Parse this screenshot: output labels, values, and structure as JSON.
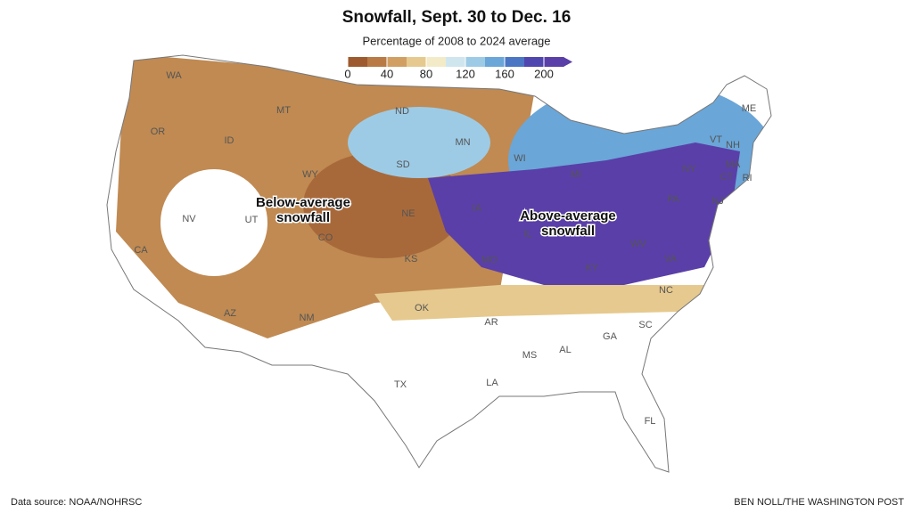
{
  "title": "Snowfall, Sept. 30 to Dec. 16",
  "subtitle": "Percentage of 2008 to 2024 average",
  "legend": {
    "range": [
      0,
      220
    ],
    "ticks": [
      0,
      40,
      80,
      120,
      160,
      200
    ],
    "colors": [
      "#9c5a2e",
      "#b97a45",
      "#d29f63",
      "#e6c98e",
      "#f3ebc8",
      "#cfe6ef",
      "#9dcbe6",
      "#6aa6d8",
      "#4a76c4",
      "#5046b0",
      "#5a3fa8"
    ]
  },
  "states": [
    "WA",
    "MT",
    "ND",
    "MN",
    "OR",
    "ID",
    "WY",
    "SD",
    "WI",
    "MI",
    "NY",
    "VT",
    "NH",
    "ME",
    "MA",
    "CT",
    "RI",
    "NJ",
    "PA",
    "NV",
    "UT",
    "NE",
    "IA",
    "IL",
    "CA",
    "CO",
    "KS",
    "MO",
    "WV",
    "KY",
    "VA",
    "NC",
    "AZ",
    "NM",
    "OK",
    "AR",
    "SC",
    "GA",
    "AL",
    "MS",
    "TX",
    "LA",
    "FL"
  ],
  "annotations": [
    {
      "lines": [
        "Below-average",
        "snowfall"
      ]
    },
    {
      "lines": [
        "Above-average",
        "snowfall"
      ]
    }
  ],
  "footer": {
    "source": "Data source: NOAA/NOHRSC",
    "credit": "BEN NOLL/THE WASHINGTON POST"
  }
}
